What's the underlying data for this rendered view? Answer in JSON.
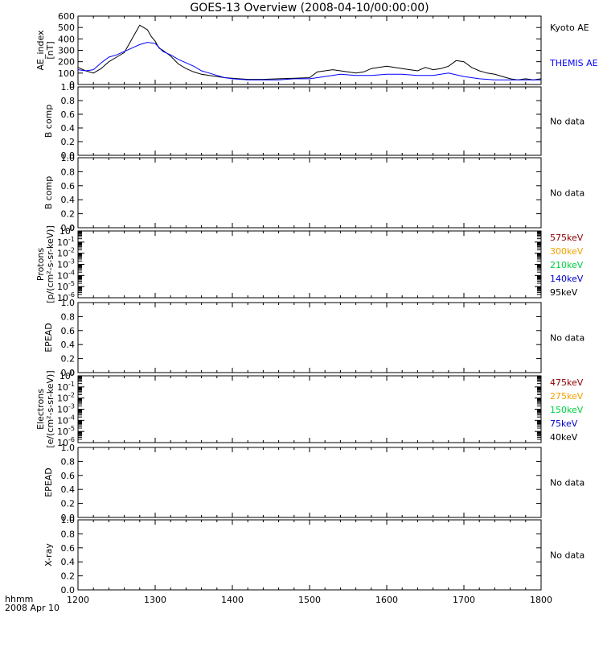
{
  "title": "GOES-13 Overview (2008-04-10/00:00:00)",
  "footer": {
    "line1": "hhmm",
    "line2": "2008 Apr 10"
  },
  "x_axis": {
    "ticks": [
      "1200",
      "1300",
      "1400",
      "1500",
      "1600",
      "1700",
      "1800"
    ]
  },
  "no_data_label": "No data",
  "chart_data": [
    {
      "type": "line",
      "panel": "ae",
      "ylabel": "AE_index [nT]",
      "ylabel_lines": [
        "AE_index",
        "[nT]"
      ],
      "xlim": [
        1200,
        1800
      ],
      "ylim": [
        0,
        600
      ],
      "yticks": [
        "0",
        "100",
        "200",
        "300",
        "400",
        "500",
        "600"
      ],
      "series": [
        {
          "name": "Kyoto AE",
          "color": "#000000",
          "x": [
            1200,
            1210,
            1220,
            1230,
            1240,
            1250,
            1260,
            1265,
            1270,
            1275,
            1280,
            1285,
            1290,
            1295,
            1300,
            1305,
            1310,
            1320,
            1330,
            1340,
            1350,
            1360,
            1370,
            1380,
            1390,
            1400,
            1420,
            1440,
            1460,
            1480,
            1500,
            1510,
            1520,
            1530,
            1540,
            1550,
            1560,
            1570,
            1580,
            1590,
            1600,
            1610,
            1620,
            1630,
            1640,
            1650,
            1660,
            1670,
            1680,
            1690,
            1700,
            1710,
            1720,
            1730,
            1740,
            1750,
            1760,
            1770,
            1780,
            1790,
            1800
          ],
          "y": [
            150,
            120,
            100,
            140,
            200,
            240,
            280,
            340,
            400,
            460,
            520,
            500,
            480,
            420,
            380,
            320,
            300,
            250,
            180,
            140,
            110,
            90,
            80,
            70,
            60,
            55,
            45,
            45,
            50,
            55,
            60,
            110,
            120,
            130,
            120,
            110,
            100,
            110,
            140,
            150,
            160,
            150,
            140,
            130,
            120,
            150,
            130,
            140,
            160,
            210,
            200,
            150,
            120,
            100,
            90,
            70,
            50,
            40,
            50,
            40,
            50
          ]
        },
        {
          "name": "THEMIS AE",
          "color": "#0000ff",
          "x": [
            1200,
            1210,
            1220,
            1230,
            1240,
            1250,
            1260,
            1270,
            1280,
            1290,
            1300,
            1310,
            1320,
            1330,
            1340,
            1350,
            1360,
            1370,
            1380,
            1390,
            1400,
            1420,
            1440,
            1460,
            1480,
            1500,
            1520,
            1540,
            1560,
            1580,
            1600,
            1620,
            1640,
            1660,
            1680,
            1700,
            1720,
            1740,
            1760,
            1780,
            1800
          ],
          "y": [
            130,
            120,
            130,
            190,
            240,
            260,
            290,
            320,
            350,
            370,
            360,
            290,
            260,
            220,
            190,
            160,
            120,
            100,
            80,
            60,
            50,
            40,
            40,
            40,
            50,
            50,
            70,
            90,
            80,
            80,
            90,
            90,
            80,
            80,
            100,
            70,
            50,
            40,
            40,
            40,
            40
          ]
        }
      ]
    },
    {
      "type": "line",
      "panel": "bcomp1",
      "ylabel": "B comp",
      "ylim": [
        0.0,
        1.0
      ],
      "yticks": [
        "0.0",
        "0.2",
        "0.4",
        "0.6",
        "0.8",
        "1.0"
      ],
      "note": "No data"
    },
    {
      "type": "line",
      "panel": "bcomp2",
      "ylabel": "B comp",
      "ylim": [
        0.0,
        1.0
      ],
      "yticks": [
        "0.0",
        "0.2",
        "0.4",
        "0.6",
        "0.8",
        "1.0"
      ],
      "note": "No data"
    },
    {
      "type": "line",
      "panel": "protons",
      "log_scale": true,
      "ylabel_lines": [
        "Protons",
        "[p/(cm²-s-sr-keV)]"
      ],
      "ylim": [
        "10^-6",
        "10^0"
      ],
      "yticks": [
        "10^-6",
        "10^-5",
        "10^-4",
        "10^-3",
        "10^-2",
        "10^-1",
        "10^0"
      ],
      "series": [
        {
          "name": "575keV",
          "color": "#8b0000"
        },
        {
          "name": "300keV",
          "color": "#f0a000"
        },
        {
          "name": "210keV",
          "color": "#00d040"
        },
        {
          "name": "140keV",
          "color": "#0000c8"
        },
        {
          "name": "95keV",
          "color": "#000000"
        }
      ]
    },
    {
      "type": "line",
      "panel": "epead1",
      "ylabel": "EPEAD",
      "ylim": [
        0.0,
        1.0
      ],
      "yticks": [
        "0.0",
        "0.2",
        "0.4",
        "0.6",
        "0.8",
        "1.0"
      ],
      "note": "No data"
    },
    {
      "type": "line",
      "panel": "electrons",
      "log_scale": true,
      "ylabel_lines": [
        "Electrons",
        "[e/(cm²-s-sr-keV)]"
      ],
      "ylim": [
        "10^-6",
        "10^0"
      ],
      "yticks": [
        "10^-6",
        "10^-5",
        "10^-4",
        "10^-3",
        "10^-2",
        "10^-1",
        "10^0"
      ],
      "series": [
        {
          "name": "475keV",
          "color": "#8b0000"
        },
        {
          "name": "275keV",
          "color": "#f0a000"
        },
        {
          "name": "150keV",
          "color": "#00d040"
        },
        {
          "name": "75keV",
          "color": "#0000c8"
        },
        {
          "name": "40keV",
          "color": "#000000"
        }
      ]
    },
    {
      "type": "line",
      "panel": "epead2",
      "ylabel": "EPEAD",
      "ylim": [
        0.0,
        1.0
      ],
      "yticks": [
        "0.0",
        "0.2",
        "0.4",
        "0.6",
        "0.8",
        "1.0"
      ],
      "note": "No data"
    },
    {
      "type": "line",
      "panel": "xray",
      "ylabel": "X-ray",
      "ylim": [
        0.0,
        1.0
      ],
      "yticks": [
        "0.0",
        "0.2",
        "0.4",
        "0.6",
        "0.8",
        "1.0"
      ],
      "note": "No data"
    }
  ]
}
